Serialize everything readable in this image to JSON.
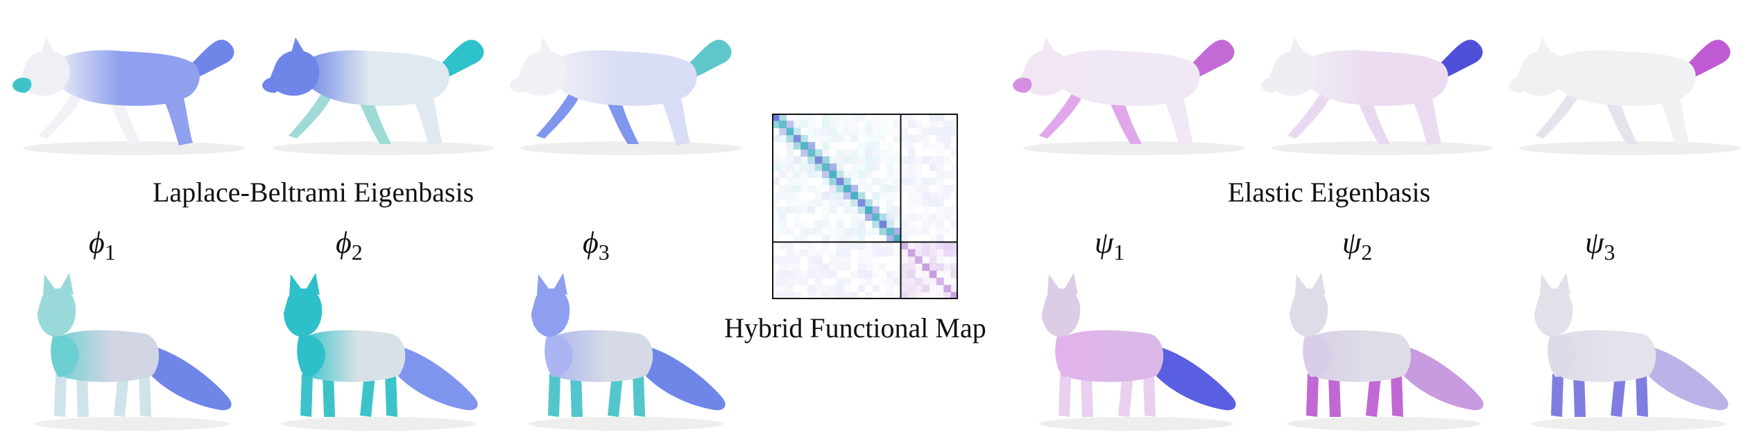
{
  "figure": {
    "left_caption": "Laplace-Beltrami Eigenbasis",
    "center_caption": "Hybrid Functional Map",
    "right_caption": "Elastic Eigenbasis"
  },
  "left_symbols": [
    {
      "base": "ϕ",
      "sub": "1"
    },
    {
      "base": "ϕ",
      "sub": "2"
    },
    {
      "base": "ϕ",
      "sub": "3"
    }
  ],
  "right_symbols": [
    {
      "base": "ψ",
      "sub": "1"
    },
    {
      "base": "ψ",
      "sub": "2"
    },
    {
      "base": "ψ",
      "sub": "3"
    }
  ],
  "colors": {
    "lb_main": "#6f86e8",
    "lb_teal": "#3fc3c9",
    "elastic_magenta": "#c46ad6",
    "elastic_blue": "#4f4fd8",
    "body_light": "#e8e9ee",
    "matrix_border": "#111111"
  },
  "shapes": {
    "top_row": [
      {
        "name": "lb-wolf-1",
        "body": "#8ea0ee",
        "head": "#eef0f6",
        "snout": "#3fc3c9",
        "tail": "#6f86e8",
        "legs": "#f2f2f6"
      },
      {
        "name": "lb-wolf-2",
        "body": "#dfe9ef",
        "head": "#6f86e8",
        "snout": "#6f86e8",
        "tail": "#2ec2cb",
        "legs": "#9fdad7"
      },
      {
        "name": "lb-wolf-3",
        "body": "#d9ddf6",
        "head": "#f1f1f5",
        "snout": "#f1f1f5",
        "tail": "#5fc6cb",
        "legs": "#7f95ee"
      },
      {
        "name": "el-wolf-1",
        "body": "#f0e8f4",
        "head": "#f0e7f3",
        "snout": "#d58fe2",
        "tail": "#c46ad6",
        "legs": "#e0a8ea"
      },
      {
        "name": "el-wolf-2",
        "body": "#ecdcf2",
        "head": "#eeeef3",
        "snout": "#eeeef3",
        "tail": "#4f4fd8",
        "legs": "#e8d9f0"
      },
      {
        "name": "el-wolf-3",
        "body": "#f1f1f4",
        "head": "#f1f1f4",
        "snout": "#f1f1f4",
        "tail": "#c05ad2",
        "legs": "#e4e4ec"
      }
    ],
    "bottom_row": [
      {
        "name": "lb-fox-1",
        "body": "#d2d6e4",
        "head": "#9ad9da",
        "chest": "#6ccfd2",
        "tail": "#6f86e8",
        "legs": "#cfe3ea"
      },
      {
        "name": "lb-fox-2",
        "body": "#d8e2e6",
        "head": "#2ec0c9",
        "chest": "#2ec0c9",
        "tail": "#7f94ec",
        "legs": "#3cc3ca"
      },
      {
        "name": "lb-fox-3",
        "body": "#d6dae6",
        "head": "#8f9ff0",
        "chest": "#a9b4f0",
        "tail": "#6f86e8",
        "legs": "#52c6cc"
      },
      {
        "name": "el-fox-1",
        "body": "#dcb8e8",
        "head": "#dccde6",
        "chest": "#e2b2ec",
        "tail": "#5a5ee0",
        "legs": "#e9d0ef"
      },
      {
        "name": "el-fox-2",
        "body": "#dedce6",
        "head": "#dedce6",
        "chest": "#d8cde8",
        "tail": "#c89ae0",
        "legs": "#c168d4"
      },
      {
        "name": "el-fox-3",
        "body": "#e4e3ec",
        "head": "#e2e1ea",
        "chest": "#dcdbe8",
        "tail": "#b9b3e8",
        "legs": "#7f7ee0"
      }
    ]
  }
}
